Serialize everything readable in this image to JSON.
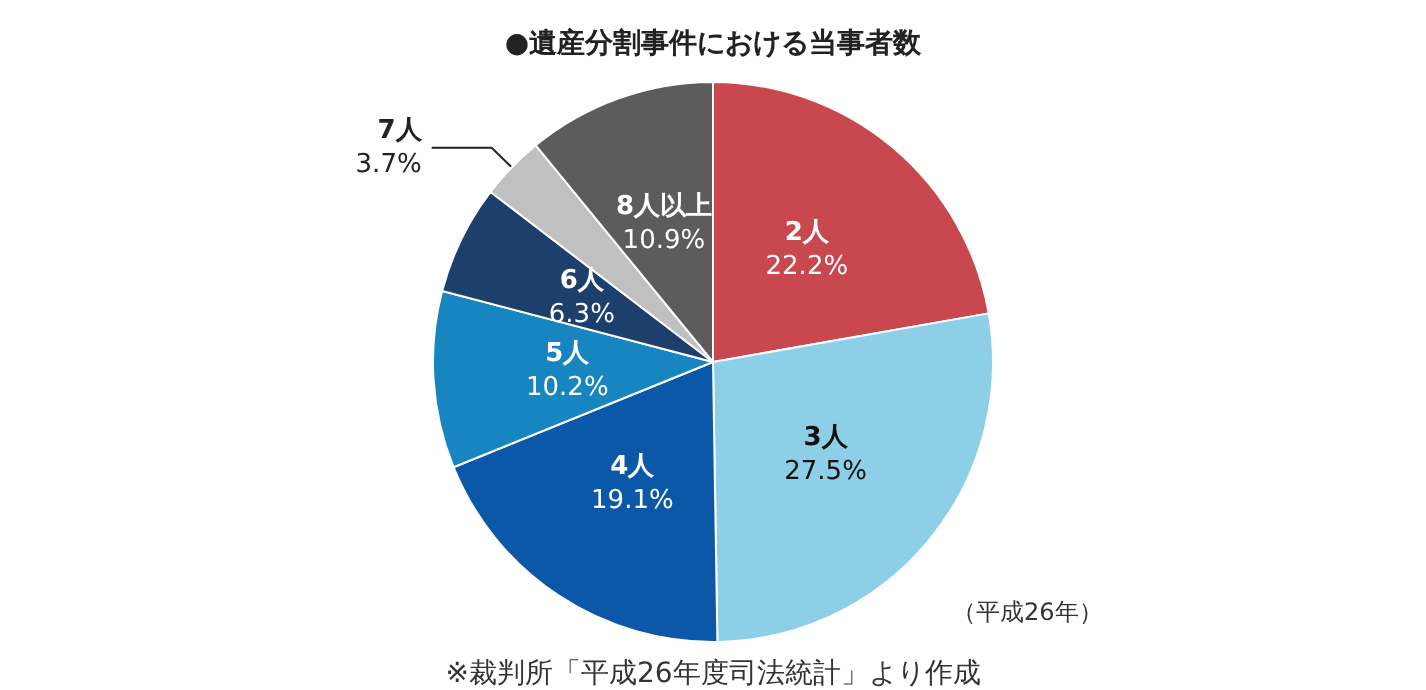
{
  "chart_data": {
    "type": "pie",
    "title": "●遺産分割事件における当事者数",
    "categories": [
      "2人",
      "3人",
      "4人",
      "5人",
      "6人",
      "7人",
      "8人以上"
    ],
    "values": [
      22.2,
      27.5,
      19.1,
      10.2,
      6.3,
      3.7,
      10.9
    ],
    "value_labels": [
      "22.2%",
      "27.5%",
      "19.1%",
      "10.2%",
      "6.3%",
      "3.7%",
      "10.9%"
    ],
    "colors": [
      "#c9474f",
      "#8ecfe8",
      "#0b57a8",
      "#1786c0",
      "#1c3f6b",
      "#c0c0c0",
      "#5c5c5c"
    ],
    "annotations": [
      "（平成26年）",
      "※裁判所「平成26年度司法統計」より作成"
    ],
    "legend": false
  }
}
